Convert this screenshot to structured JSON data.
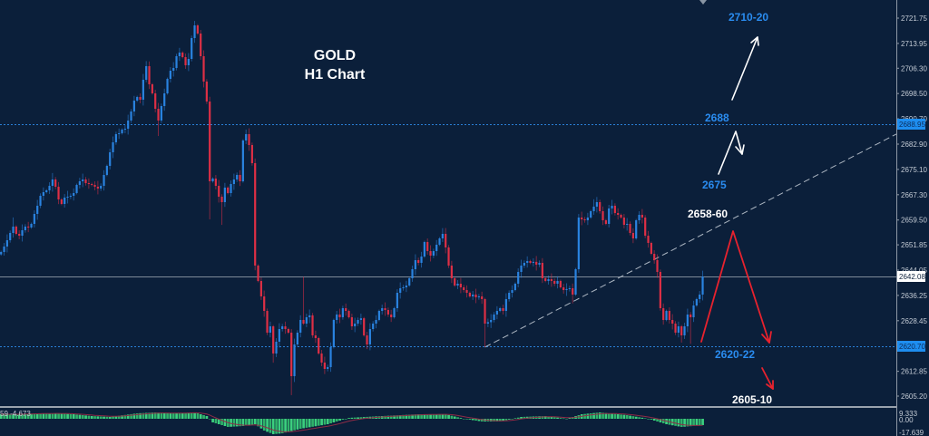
{
  "chart_title": {
    "symbol": "GOLD",
    "timeframe": "H1 Chart"
  },
  "annotations": {
    "upper_target": "2710-20",
    "resistance": "2688",
    "support_upper": "2675",
    "trendline_retest": "2658-60",
    "support_lower": "2620-22",
    "lower_target": "2605-10"
  },
  "price_labels": {
    "current_price": "2642.08",
    "resistance_line": "2688.95",
    "support_line": "2620.70"
  },
  "indicator_panel": {
    "name_value_label": "59 -4.673",
    "axis_max": "9.333",
    "axis_zero": "0.00",
    "axis_min": "-17.639"
  },
  "colors": {
    "background": "#0b1f3a",
    "bull_candle": "#2a83e0",
    "bear_candle": "#de2f45",
    "level_line_blue": "#2a80d8",
    "current_price_line": "#7e8a99",
    "trendline": "#c9d1da",
    "annotation_blue": "#2a8cf0",
    "annotation_white": "#ffffff",
    "scenario_red": "#e8222e",
    "macd_histogram": "#2fb36a",
    "macd_histogram_alt": "#3ccf7f",
    "macd_signal": "#8e2b46"
  },
  "chart_data": {
    "type": "candlestick",
    "title": "GOLD H1 Chart",
    "symbol": "GOLD",
    "timeframe": "H1",
    "xlabel": "",
    "ylabel": "",
    "grid": false,
    "y_axis": {
      "range": [
        2605.2,
        2721.75
      ],
      "ticks": [
        "2721.75",
        "2713.95",
        "2706.30",
        "2698.50",
        "2690.70",
        "2682.90",
        "2675.10",
        "2667.30",
        "2659.50",
        "2651.85",
        "2644.05",
        "2636.25",
        "2628.45",
        "2612.85",
        "2605.20"
      ]
    },
    "horizontal_levels": [
      {
        "price": 2688.95,
        "style": "dotted",
        "color": "#2a80d8"
      },
      {
        "price": 2642.08,
        "style": "solid",
        "color": "#7e8a99"
      },
      {
        "price": 2620.7,
        "style": "dotted",
        "color": "#2a80d8"
      }
    ],
    "trendline": {
      "start_index": 160,
      "start_price": 2620.3,
      "end_price_at_axis": 2686.0,
      "style": "dashed"
    },
    "first_open": 2648.9,
    "series": [
      {
        "name": "close",
        "values": [
          2649.64,
          2651.32,
          2653.27,
          2655.51,
          2657.47,
          2655.23,
          2654.67,
          2656.35,
          2657.47,
          2657.2,
          2658.31,
          2661.38,
          2663.9,
          2666.97,
          2668.09,
          2668.65,
          2670.04,
          2672.0,
          2669.76,
          2665.85,
          2664.45,
          2666.41,
          2666.69,
          2666.97,
          2667.81,
          2670.32,
          2671.44,
          2672.0,
          2670.88,
          2670.6,
          2670.32,
          2669.76,
          2669.21,
          2670.04,
          2673.4,
          2676.19,
          2680.39,
          2683.46,
          2685.98,
          2686.26,
          2687.37,
          2687.65,
          2690.17,
          2692.96,
          2696.32,
          2697.43,
          2696.6,
          2702.74,
          2706.94,
          2701.35,
          2698.55,
          2693.8,
          2690.17,
          2694.64,
          2698.55,
          2703.02,
          2705.54,
          2706.38,
          2710.01,
          2711.13,
          2709.73,
          2707.22,
          2709.17,
          2715.6,
          2719.51,
          2717.0,
          2710.01,
          2702.19,
          2696.04,
          2671.44,
          2672.28,
          2670.04,
          2666.69,
          2665.01,
          2669.49,
          2667.81,
          2670.6,
          2672.0,
          2673.4,
          2671.44,
          2684.02,
          2685.98,
          2682.62,
          2677.03,
          2645.45,
          2640.7,
          2635.95,
          2631.47,
          2624.77,
          2626.72,
          2618.34,
          2621.97,
          2625.88,
          2626.72,
          2625.88,
          2624.77,
          2611.35,
          2621.13,
          2624.77,
          2628.68,
          2627.56,
          2629.52,
          2630.1,
          2623.93,
          2623.09,
          2618.34,
          2615.54,
          2613.59,
          2614.15,
          2620.3,
          2628.68,
          2630.36,
          2629.52,
          2632.31,
          2631.47,
          2629.52,
          2626.72,
          2627.56,
          2628.68,
          2629.2,
          2623.93,
          2621.13,
          2625.88,
          2627.56,
          2628.68,
          2631.47,
          2632.31,
          2631.75,
          2630.36,
          2629.52,
          2632.31,
          2637.06,
          2638.46,
          2638.74,
          2639.3,
          2641.54,
          2644.33,
          2647.13,
          2646.29,
          2648.24,
          2652.72,
          2649.92,
          2648.52,
          2649.92,
          2651.88,
          2653.83,
          2655.23,
          2651.04,
          2645.45,
          2641.54,
          2639.3,
          2639.86,
          2638.74,
          2637.9,
          2637.06,
          2635.95,
          2636.51,
          2635.67,
          2635.95,
          2635.11,
          2627.56,
          2628.0,
          2628.68,
          2630.36,
          2631.47,
          2632.31,
          2631.47,
          2635.11,
          2637.06,
          2637.9,
          2639.86,
          2643.49,
          2645.45,
          2646.29,
          2646.85,
          2646.29,
          2646.6,
          2645.73,
          2646.29,
          2641.54,
          2640.7,
          2641.26,
          2640.7,
          2639.86,
          2640.7,
          2638.74,
          2637.9,
          2638.2,
          2638.46,
          2636.51,
          2644.33,
          2660.26,
          2659.7,
          2659.42,
          2660.26,
          2662.22,
          2663.62,
          2665.01,
          2662.22,
          2659.42,
          2658.31,
          2663.06,
          2663.9,
          2661.66,
          2661.1,
          2660.26,
          2658.03,
          2658.31,
          2655.51,
          2653.83,
          2659.42,
          2661.1,
          2660.26,
          2654.67,
          2652.44,
          2649.08,
          2647.13,
          2643.49,
          2632.31,
          2628.68,
          2631.47,
          2628.68,
          2627.56,
          2624.77,
          2626.72,
          2623.93,
          2626.72,
          2630.36,
          2629.52,
          2633.15,
          2635.11,
          2636.51,
          2642.08
        ]
      }
    ],
    "wick_overrides": [
      {
        "index": 4,
        "high": 2660.3
      },
      {
        "index": 17,
        "high": 2674.0
      },
      {
        "index": 48,
        "high": 2708.5
      },
      {
        "index": 52,
        "low": 2685.4
      },
      {
        "index": 64,
        "high": 2720.9
      },
      {
        "index": 69,
        "low": 2659.7
      },
      {
        "index": 73,
        "low": 2658.0
      },
      {
        "index": 81,
        "high": 2687.4
      },
      {
        "index": 90,
        "low": 2615.5
      },
      {
        "index": 96,
        "low": 2605.5
      },
      {
        "index": 100,
        "high": 2642.0
      },
      {
        "index": 107,
        "low": 2612.0
      },
      {
        "index": 121,
        "low": 2619.7
      },
      {
        "index": 146,
        "high": 2657.0
      },
      {
        "index": 160,
        "low": 2620.3
      },
      {
        "index": 189,
        "low": 2633.8
      },
      {
        "index": 196,
        "high": 2665.9
      },
      {
        "index": 197,
        "high": 2666.6
      },
      {
        "index": 225,
        "low": 2621.7
      },
      {
        "index": 228,
        "low": 2621.3
      }
    ],
    "indicator": {
      "type": "MACD",
      "range": [
        -17.639,
        9.333
      ],
      "histogram_points": [
        [
          0,
          5
        ],
        [
          6,
          5
        ],
        [
          12,
          6
        ],
        [
          18,
          6
        ],
        [
          24,
          5
        ],
        [
          30,
          3
        ],
        [
          36,
          2
        ],
        [
          45,
          6
        ],
        [
          51,
          7
        ],
        [
          57,
          6
        ],
        [
          64,
          7
        ],
        [
          68,
          3
        ],
        [
          70,
          -4
        ],
        [
          75,
          -9
        ],
        [
          80,
          -8
        ],
        [
          84,
          -6
        ],
        [
          87,
          -13
        ],
        [
          90,
          -17
        ],
        [
          93,
          -16
        ],
        [
          99,
          -11
        ],
        [
          108,
          -6
        ],
        [
          112,
          -2
        ],
        [
          115,
          1
        ],
        [
          126,
          3
        ],
        [
          138,
          5
        ],
        [
          147,
          5
        ],
        [
          153,
          0
        ],
        [
          159,
          -3
        ],
        [
          165,
          -3
        ],
        [
          172,
          2
        ],
        [
          180,
          3
        ],
        [
          187,
          0
        ],
        [
          192,
          5
        ],
        [
          198,
          7
        ],
        [
          207,
          4
        ],
        [
          214,
          0
        ],
        [
          220,
          -6
        ],
        [
          225,
          -9
        ],
        [
          232,
          -7
        ]
      ]
    }
  }
}
